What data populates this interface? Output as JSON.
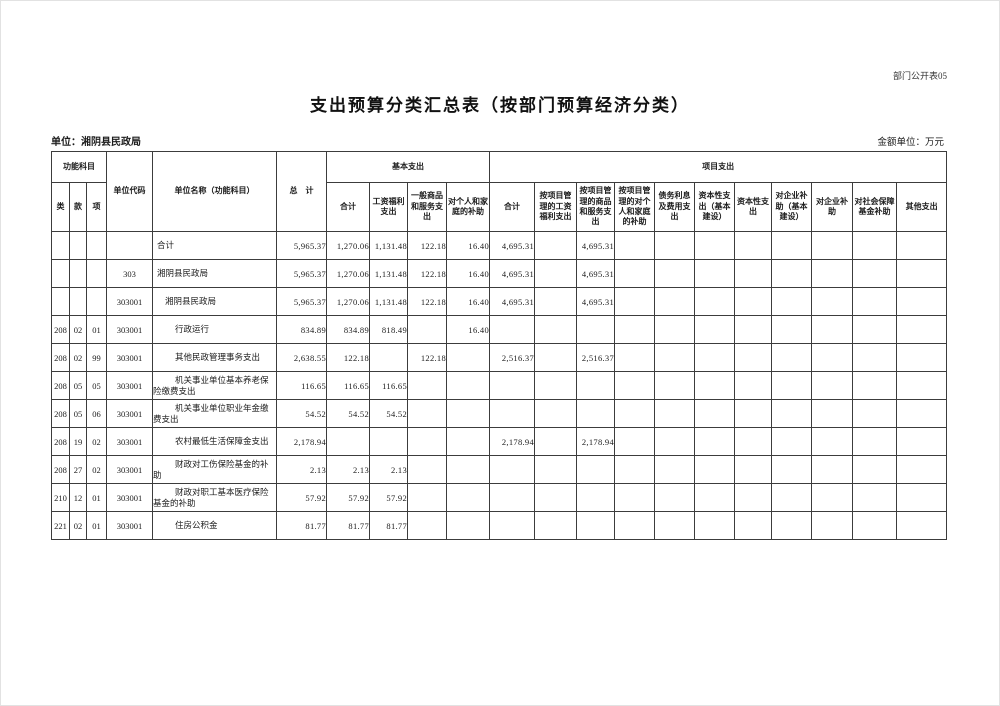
{
  "page": {
    "form_code": "部门公开表05",
    "title": "支出预算分类汇总表（按部门预算经济分类）",
    "unit_label": "单位：湘阴县民政局",
    "amount_unit_label": "金额单位：万元"
  },
  "table": {
    "header": {
      "func_group": "功能科目",
      "func_cols": [
        "类",
        "款",
        "项"
      ],
      "unit_code": "单位代码",
      "unit_name": "单位名称（功能科目）",
      "total": "总　计",
      "basic_group": "基本支出",
      "basic_cols": [
        "合计",
        "工资福利支出",
        "一般商品和服务支出",
        "对个人和家庭的补助"
      ],
      "project_group": "项目支出",
      "project_cols": [
        "合计",
        "按项目管理的工资福利支出",
        "按项目管理的商品和服务支出",
        "按项目管理的对个人和家庭的补助",
        "债务利息及费用支出",
        "资本性支出（基本建设）",
        "资本性支出",
        "对企业补助（基本建设）",
        "对企业补助",
        "对社会保障基金补助",
        "其他支出"
      ]
    },
    "rows": [
      {
        "lei": "",
        "kuan": "",
        "xiang": "",
        "code": "",
        "name": "合计",
        "indent": 0,
        "values": [
          "5,965.37",
          "1,270.06",
          "1,131.48",
          "122.18",
          "16.40",
          "4,695.31",
          "",
          "4,695.31",
          "",
          "",
          "",
          "",
          "",
          "",
          "",
          ""
        ]
      },
      {
        "lei": "",
        "kuan": "",
        "xiang": "",
        "code": "303",
        "name": "湘阴县民政局",
        "indent": 0,
        "values": [
          "5,965.37",
          "1,270.06",
          "1,131.48",
          "122.18",
          "16.40",
          "4,695.31",
          "",
          "4,695.31",
          "",
          "",
          "",
          "",
          "",
          "",
          "",
          ""
        ]
      },
      {
        "lei": "",
        "kuan": "",
        "xiang": "",
        "code": "303001",
        "name": "湘阴县民政局",
        "indent": 1,
        "values": [
          "5,965.37",
          "1,270.06",
          "1,131.48",
          "122.18",
          "16.40",
          "4,695.31",
          "",
          "4,695.31",
          "",
          "",
          "",
          "",
          "",
          "",
          "",
          ""
        ]
      },
      {
        "lei": "208",
        "kuan": "02",
        "xiang": "01",
        "code": "303001",
        "name": "行政运行",
        "indent": 2,
        "values": [
          "834.89",
          "834.89",
          "818.49",
          "",
          "16.40",
          "",
          "",
          "",
          "",
          "",
          "",
          "",
          "",
          "",
          "",
          ""
        ]
      },
      {
        "lei": "208",
        "kuan": "02",
        "xiang": "99",
        "code": "303001",
        "name": "其他民政管理事务支出",
        "indent": 2,
        "values": [
          "2,638.55",
          "122.18",
          "",
          "122.18",
          "",
          "2,516.37",
          "",
          "2,516.37",
          "",
          "",
          "",
          "",
          "",
          "",
          "",
          ""
        ]
      },
      {
        "lei": "208",
        "kuan": "05",
        "xiang": "05",
        "code": "303001",
        "name": "机关事业单位基本养老保险缴费支出",
        "indent": 2,
        "values": [
          "116.65",
          "116.65",
          "116.65",
          "",
          "",
          "",
          "",
          "",
          "",
          "",
          "",
          "",
          "",
          "",
          "",
          ""
        ]
      },
      {
        "lei": "208",
        "kuan": "05",
        "xiang": "06",
        "code": "303001",
        "name": "机关事业单位职业年金缴费支出",
        "indent": 2,
        "values": [
          "54.52",
          "54.52",
          "54.52",
          "",
          "",
          "",
          "",
          "",
          "",
          "",
          "",
          "",
          "",
          "",
          "",
          ""
        ]
      },
      {
        "lei": "208",
        "kuan": "19",
        "xiang": "02",
        "code": "303001",
        "name": "农村最低生活保障金支出",
        "indent": 2,
        "values": [
          "2,178.94",
          "",
          "",
          "",
          "",
          "2,178.94",
          "",
          "2,178.94",
          "",
          "",
          "",
          "",
          "",
          "",
          "",
          ""
        ]
      },
      {
        "lei": "208",
        "kuan": "27",
        "xiang": "02",
        "code": "303001",
        "name": "财政对工伤保险基金的补助",
        "indent": 2,
        "values": [
          "2.13",
          "2.13",
          "2.13",
          "",
          "",
          "",
          "",
          "",
          "",
          "",
          "",
          "",
          "",
          "",
          "",
          ""
        ]
      },
      {
        "lei": "210",
        "kuan": "12",
        "xiang": "01",
        "code": "303001",
        "name": "财政对职工基本医疗保险基金的补助",
        "indent": 2,
        "values": [
          "57.92",
          "57.92",
          "57.92",
          "",
          "",
          "",
          "",
          "",
          "",
          "",
          "",
          "",
          "",
          "",
          "",
          ""
        ]
      },
      {
        "lei": "221",
        "kuan": "02",
        "xiang": "01",
        "code": "303001",
        "name": "住房公积金",
        "indent": 2,
        "values": [
          "81.77",
          "81.77",
          "81.77",
          "",
          "",
          "",
          "",
          "",
          "",
          "",
          "",
          "",
          "",
          "",
          "",
          ""
        ]
      }
    ]
  }
}
